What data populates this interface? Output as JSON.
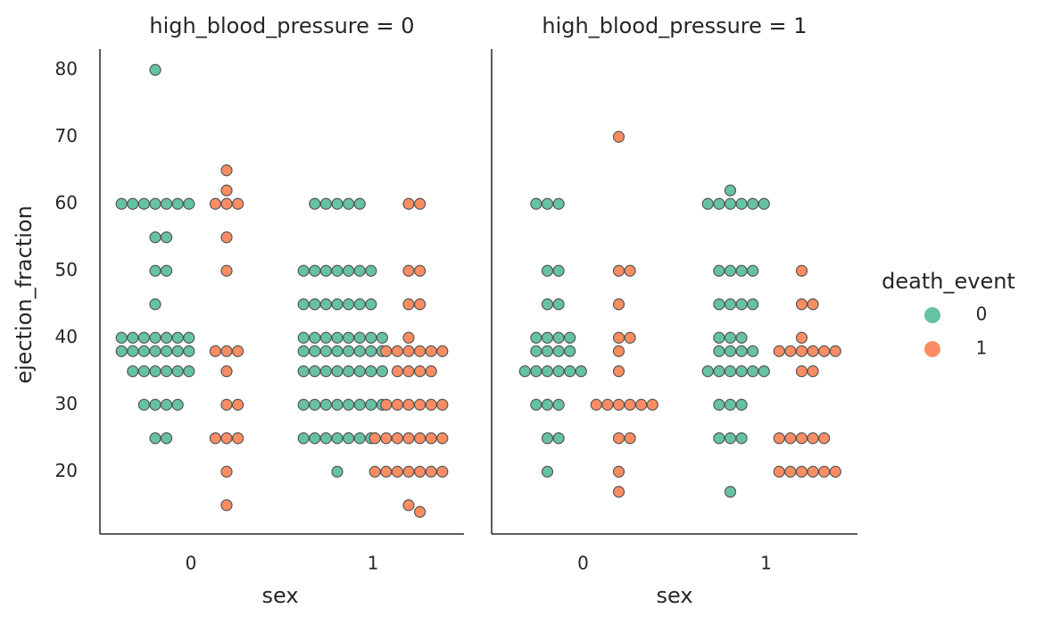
{
  "chart_data": [
    {
      "type": "swarm",
      "title": "high_blood_pressure = 0",
      "xlabel": "sex",
      "ylabel": "ejection_fraction",
      "categories": [
        "0",
        "1"
      ],
      "ylim": [
        10.7,
        83.1
      ],
      "yticks": [
        20,
        30,
        40,
        50,
        60,
        70,
        80
      ],
      "legend_title": "death_event",
      "legend": "right",
      "series": [
        {
          "name": "0",
          "color": "#66c2a5",
          "values": [
            [
              80,
              60,
              60,
              60,
              60,
              60,
              60,
              60,
              55,
              55,
              50,
              50,
              45,
              40,
              40,
              40,
              40,
              40,
              40,
              40,
              38,
              38,
              38,
              38,
              38,
              38,
              38,
              35,
              35,
              35,
              35,
              35,
              35,
              30,
              30,
              30,
              30,
              25,
              25
            ],
            [
              60,
              60,
              60,
              60,
              60,
              50,
              50,
              50,
              50,
              50,
              50,
              50,
              45,
              45,
              45,
              45,
              45,
              45,
              45,
              40,
              40,
              40,
              40,
              40,
              40,
              40,
              40,
              38,
              38,
              38,
              38,
              38,
              38,
              38,
              38,
              35,
              35,
              35,
              35,
              35,
              35,
              35,
              35,
              30,
              30,
              30,
              30,
              30,
              30,
              30,
              30,
              25,
              25,
              25,
              25,
              25,
              25,
              25,
              20
            ]
          ]
        },
        {
          "name": "1",
          "color": "#fc8d62",
          "values": [
            [
              65,
              62,
              60,
              60,
              60,
              55,
              50,
              38,
              38,
              38,
              35,
              30,
              30,
              25,
              25,
              25,
              20,
              15
            ],
            [
              60,
              60,
              50,
              50,
              45,
              45,
              40,
              38,
              38,
              38,
              38,
              38,
              38,
              35,
              35,
              35,
              35,
              30,
              30,
              30,
              30,
              30,
              30,
              25,
              25,
              25,
              25,
              25,
              25,
              25,
              20,
              20,
              20,
              20,
              20,
              20,
              20,
              15,
              14
            ]
          ]
        }
      ]
    },
    {
      "type": "swarm",
      "title": "high_blood_pressure = 1",
      "xlabel": "sex",
      "categories": [
        "0",
        "1"
      ],
      "ylim": [
        10.7,
        83.1
      ],
      "series": [
        {
          "color": "#66c2a5",
          "values": [
            [
              60,
              60,
              60,
              50,
              50,
              45,
              45,
              40,
              40,
              40,
              40,
              38,
              38,
              38,
              38,
              35,
              35,
              35,
              35,
              35,
              35,
              30,
              30,
              30,
              25,
              25,
              20
            ],
            [
              62,
              60,
              60,
              60,
              60,
              60,
              60,
              50,
              50,
              50,
              50,
              45,
              45,
              45,
              45,
              40,
              40,
              40,
              38,
              38,
              38,
              38,
              35,
              35,
              35,
              35,
              35,
              35,
              30,
              30,
              30,
              25,
              25,
              25,
              17
            ]
          ]
        },
        {
          "color": "#fc8d62",
          "values": [
            [
              70,
              50,
              50,
              45,
              40,
              40,
              38,
              35,
              30,
              30,
              30,
              30,
              30,
              30,
              25,
              25,
              20,
              17
            ],
            [
              50,
              45,
              45,
              40,
              38,
              38,
              38,
              38,
              38,
              38,
              35,
              35,
              25,
              25,
              25,
              25,
              25,
              20,
              20,
              20,
              20,
              20,
              20
            ]
          ]
        }
      ]
    }
  ]
}
